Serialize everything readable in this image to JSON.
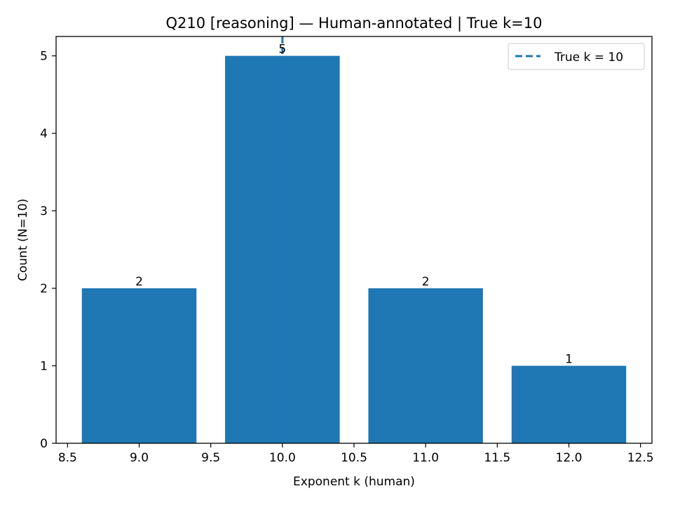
{
  "chart_data": {
    "type": "bar",
    "title": "Q210 [reasoning] — Human-annotated | True k=10",
    "xlabel": "Exponent k (human)",
    "ylabel": "Count (N=10)",
    "x": [
      9,
      10,
      11,
      12
    ],
    "values": [
      2,
      5,
      2,
      1
    ],
    "bar_width": 0.8,
    "xlim": [
      8.42,
      12.58
    ],
    "ylim": [
      0,
      5.25
    ],
    "xticks": [
      8.5,
      9.0,
      9.5,
      10.0,
      10.5,
      11.0,
      11.5,
      12.0,
      12.5
    ],
    "xtick_labels": [
      "8.5",
      "9.0",
      "9.5",
      "10.0",
      "10.5",
      "11.0",
      "11.5",
      "12.0",
      "12.5"
    ],
    "yticks": [
      0,
      1,
      2,
      3,
      4,
      5
    ],
    "ytick_labels": [
      "0",
      "1",
      "2",
      "3",
      "4",
      "5"
    ],
    "bar_labels": [
      "2",
      "5",
      "2",
      "1"
    ],
    "bar_color": "#1f77b4",
    "reference_line": {
      "x": 10,
      "label": "True k = 10",
      "style": "dashed",
      "color": "#1f77b4"
    },
    "legend": {
      "position": "top-right",
      "entries": [
        "True k = 10"
      ]
    },
    "grid": false
  }
}
